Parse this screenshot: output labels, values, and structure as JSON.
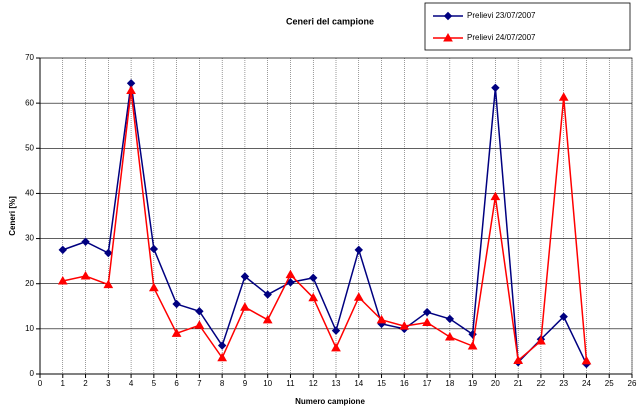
{
  "chart_data": {
    "type": "line",
    "title": "Ceneri del campione",
    "xlabel": "Numero campione",
    "ylabel": "Ceneri [%]",
    "x": [
      1,
      2,
      3,
      4,
      5,
      6,
      7,
      8,
      9,
      10,
      11,
      12,
      13,
      14,
      15,
      16,
      17,
      18,
      19,
      20,
      21,
      22,
      23,
      24
    ],
    "series": [
      {
        "name": "Prelievi 23/07/2007",
        "color": "#000080",
        "marker": "diamond",
        "values": [
          27.5,
          29.3,
          26.8,
          64.4,
          27.7,
          15.5,
          13.9,
          6.3,
          21.6,
          17.6,
          20.3,
          21.3,
          9.6,
          27.5,
          11.1,
          10,
          13.7,
          12.2,
          8.8,
          63.4,
          2.6,
          7.7,
          12.7,
          2.2
        ]
      },
      {
        "name": "Prelievi 24/07/2007",
        "color": "#ff0000",
        "marker": "triangle",
        "values": [
          20.6,
          21.7,
          19.8,
          62.8,
          19.1,
          9,
          10.8,
          3.6,
          14.8,
          12,
          22,
          16.9,
          5.8,
          17,
          12,
          10.6,
          11.4,
          8.2,
          6.2,
          39.3,
          3,
          7.3,
          61.3,
          2.9
        ]
      }
    ],
    "xlim": [
      0,
      26
    ],
    "xticks": [
      0,
      1,
      2,
      3,
      4,
      5,
      6,
      7,
      8,
      9,
      10,
      11,
      12,
      13,
      14,
      15,
      16,
      17,
      18,
      19,
      20,
      21,
      22,
      23,
      24,
      25,
      26
    ],
    "ylim": [
      0,
      70
    ],
    "yticks": [
      0,
      10,
      20,
      30,
      40,
      50,
      60,
      70
    ],
    "grid": true,
    "legend": "top-right"
  }
}
